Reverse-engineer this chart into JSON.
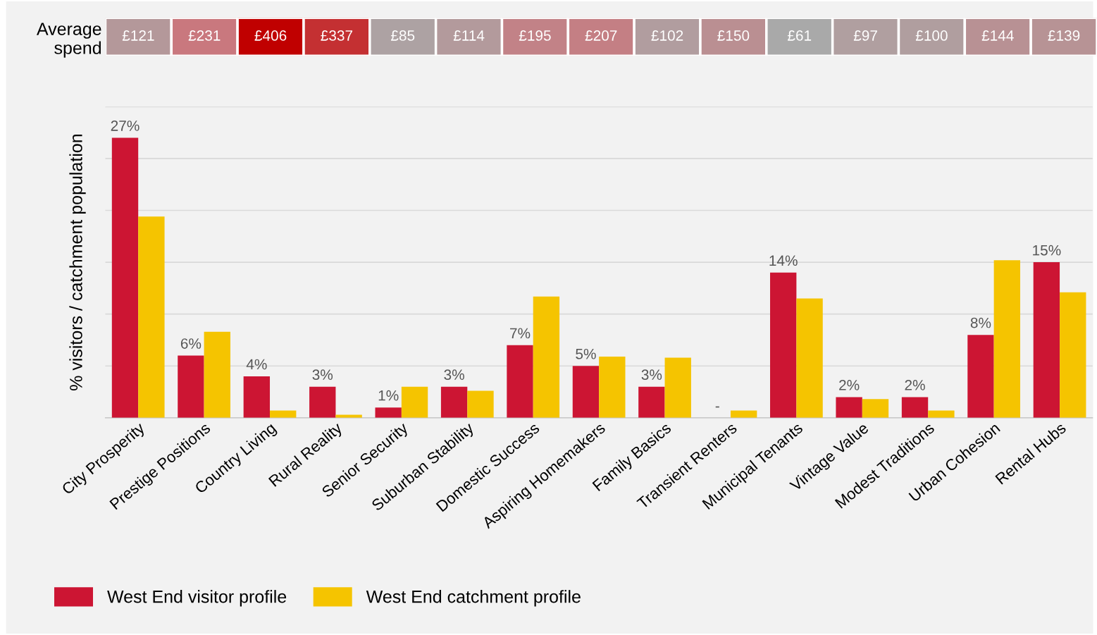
{
  "chart_data": [
    {
      "type": "heatmap",
      "categories": [
        null,
        null,
        null,
        null,
        null,
        null,
        null,
        null,
        null,
        null,
        null,
        null,
        null,
        null,
        null
      ],
      "y_categories": [
        "Average\nspend"
      ],
      "cells": [
        [
          121,
          231,
          406,
          337,
          85,
          114,
          195,
          207,
          102,
          150,
          61,
          97,
          100,
          144,
          139
        ]
      ],
      "cell_labels": [
        [
          "£121",
          "£231",
          "£406",
          "£337",
          "£85",
          "£114",
          "£195",
          "£207",
          "£102",
          "£150",
          "£61",
          "£97",
          "£100",
          "£144",
          "£139"
        ]
      ]
    },
    {
      "type": "bar",
      "ylabel": "% visitors / catchment population",
      "categories": [
        "City Prosperity",
        "Prestige Positions",
        "Country Living",
        "Rural Reality",
        "Senior Security",
        "Suburban Stability",
        "Domestic Success",
        "Aspiring Homemakers",
        "Family Basics",
        "Transient Renters",
        "Municipal Tenants",
        "Vintage Value",
        "Modest Traditions",
        "Urban Cohesion",
        "Rental Hubs"
      ],
      "series": [
        {
          "name": "West End visitor profile",
          "color": "#cc1533",
          "values": [
            27,
            6,
            4,
            3,
            1,
            3,
            7,
            5,
            3,
            null,
            14,
            2,
            2,
            8,
            15
          ],
          "value_labels": [
            "27%",
            "6%",
            "4%",
            "3%",
            "1%",
            "3%",
            "7%",
            "5%",
            "3%",
            null,
            "14%",
            "2%",
            "2%",
            "8%",
            "15%"
          ]
        },
        {
          "name": "West End catchment profile",
          "color": "#f5c400",
          "values": [
            19.4,
            8.3,
            0.7,
            0.3,
            3.0,
            2.6,
            11.7,
            5.9,
            5.8,
            0.7,
            11.5,
            1.8,
            0.7,
            15.2,
            12.1
          ]
        }
      ],
      "ylim": [
        0,
        30
      ],
      "yticks": [
        {
          "value": 0,
          "label": null
        },
        {
          "value": 5,
          "label": null
        },
        {
          "value": 10,
          "label": null
        },
        {
          "value": 15,
          "label": null
        },
        {
          "value": 20,
          "label": null
        },
        {
          "value": 25,
          "label": null
        },
        {
          "value": 30,
          "label": null
        }
      ],
      "annotations": [
        {
          "text": "-",
          "x": "Transient Renters",
          "y": 0
        }
      ],
      "tick_labels": "x",
      "grid": "y",
      "legend": "bottom"
    }
  ]
}
